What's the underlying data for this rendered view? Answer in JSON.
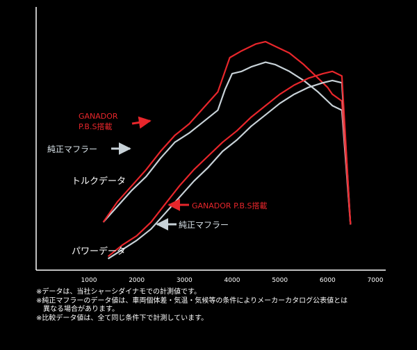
{
  "chart_data": {
    "type": "line",
    "xlim": [
      0,
      7000
    ],
    "x_ticks": [
      "1000",
      "2000",
      "3000",
      "4000",
      "5000",
      "6000",
      "7000"
    ],
    "grid": false,
    "groups": [
      {
        "label": "トルクデータ",
        "series": [
          {
            "name": "GANADOR P.B.S搭載",
            "color": "#e8262b",
            "x": [
              1300,
              1600,
              1900,
              2200,
              2500,
              2800,
              3100,
              3400,
              3700,
              3850,
              3950,
              4200,
              4500,
              4700,
              4900,
              5200,
              5500,
              5800,
              6000,
              6100,
              6300,
              6480
            ],
            "y": [
              0.21,
              0.3,
              0.37,
              0.44,
              0.52,
              0.59,
              0.64,
              0.71,
              0.78,
              0.87,
              0.93,
              0.96,
              0.99,
              1.0,
              0.98,
              0.95,
              0.9,
              0.84,
              0.8,
              0.77,
              0.74,
              0.2
            ]
          },
          {
            "name": "純正マフラー",
            "color": "#c8d2d8",
            "x": [
              1300,
              1600,
              1900,
              2200,
              2500,
              2800,
              3100,
              3400,
              3700,
              3850,
              4000,
              4200,
              4400,
              4700,
              4900,
              5200,
              5500,
              5800,
              6000,
              6100,
              6300,
              6480
            ],
            "y": [
              0.21,
              0.28,
              0.35,
              0.41,
              0.49,
              0.56,
              0.6,
              0.65,
              0.7,
              0.79,
              0.86,
              0.87,
              0.89,
              0.91,
              0.9,
              0.87,
              0.83,
              0.78,
              0.74,
              0.72,
              0.7,
              0.2
            ]
          }
        ]
      },
      {
        "label": "パワーデータ",
        "series": [
          {
            "name": "GANADOR P.B.S搭載",
            "color": "#e8262b",
            "x": [
              1400,
              1700,
              2000,
              2300,
              2600,
              2900,
              3200,
              3500,
              3800,
              4100,
              4400,
              4700,
              5000,
              5300,
              5600,
              5900,
              6100,
              6300,
              6480
            ],
            "y": [
              0.06,
              0.11,
              0.15,
              0.21,
              0.29,
              0.37,
              0.44,
              0.5,
              0.56,
              0.61,
              0.67,
              0.72,
              0.77,
              0.81,
              0.84,
              0.86,
              0.87,
              0.85,
              0.2
            ]
          },
          {
            "name": "純正マフラー",
            "color": "#c8d2d8",
            "x": [
              1400,
              1700,
              2000,
              2300,
              2600,
              2900,
              3200,
              3500,
              3800,
              4100,
              4400,
              4700,
              5000,
              5300,
              5600,
              5900,
              6100,
              6300,
              6480
            ],
            "y": [
              0.05,
              0.09,
              0.13,
              0.18,
              0.25,
              0.32,
              0.39,
              0.45,
              0.52,
              0.57,
              0.63,
              0.68,
              0.73,
              0.77,
              0.8,
              0.82,
              0.83,
              0.82,
              0.2
            ]
          }
        ]
      }
    ],
    "annotations": {
      "torque_red": [
        "GANADOR",
        "P.B.S搭載"
      ],
      "torque_gray": "純正マフラー",
      "power_red": "GANADOR P.B.S搭載",
      "power_gray": "純正マフラー"
    }
  },
  "notes": [
    "※データは、当社シャーシダイナモでの計測値です。",
    "※純正マフラーのデータ値は、車両個体差・気温・気候等の条件によりメーカーカタログ公表値とは",
    "異なる場合があります。",
    "※比較データ値は、全て同じ条件下で計測しています。"
  ]
}
